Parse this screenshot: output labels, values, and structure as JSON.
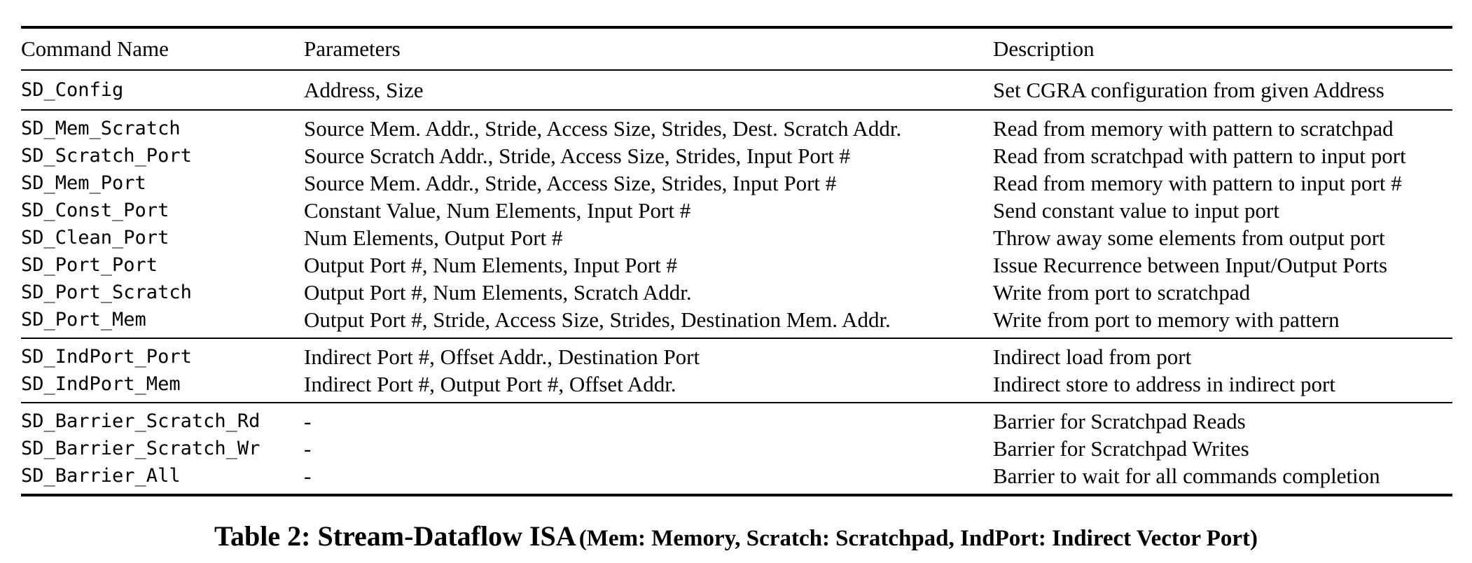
{
  "table": {
    "headers": {
      "command": "Command Name",
      "parameters": "Parameters",
      "description": "Description"
    },
    "groups": [
      {
        "rows": [
          {
            "command": "SD_Config",
            "parameters": "Address, Size",
            "description": "Set CGRA configuration from given Address"
          }
        ]
      },
      {
        "rows": [
          {
            "command": "SD_Mem_Scratch",
            "parameters": "Source Mem. Addr., Stride, Access Size, Strides, Dest. Scratch Addr.",
            "description": "Read from memory with pattern to scratchpad"
          },
          {
            "command": "SD_Scratch_Port",
            "parameters": "Source Scratch Addr., Stride, Access Size, Strides, Input Port #",
            "description": "Read from scratchpad with pattern to input port"
          },
          {
            "command": "SD_Mem_Port",
            "parameters": "Source Mem. Addr., Stride, Access Size, Strides, Input Port #",
            "description": "Read from memory with pattern to input port #"
          },
          {
            "command": "SD_Const_Port",
            "parameters": "Constant Value, Num Elements, Input Port #",
            "description": "Send constant value to input port"
          },
          {
            "command": "SD_Clean_Port",
            "parameters": "Num Elements, Output Port #",
            "description": "Throw away some elements from output port"
          },
          {
            "command": "SD_Port_Port",
            "parameters": "Output Port #, Num Elements, Input Port #",
            "description": "Issue Recurrence between Input/Output Ports"
          },
          {
            "command": "SD_Port_Scratch",
            "parameters": "Output Port #, Num Elements, Scratch Addr.",
            "description": "Write from port to scratchpad"
          },
          {
            "command": "SD_Port_Mem",
            "parameters": "Output Port #, Stride, Access Size, Strides, Destination Mem. Addr.",
            "description": "Write from port to memory with pattern"
          }
        ]
      },
      {
        "rows": [
          {
            "command": "SD_IndPort_Port",
            "parameters": "Indirect Port #, Offset Addr., Destination Port",
            "description": "Indirect load from port"
          },
          {
            "command": "SD_IndPort_Mem",
            "parameters": "Indirect Port #, Output Port #, Offset Addr.",
            "description": "Indirect store to address in indirect port"
          }
        ]
      },
      {
        "rows": [
          {
            "command": "SD_Barrier_Scratch_Rd",
            "parameters": "-",
            "description": "Barrier for Scratchpad Reads"
          },
          {
            "command": "SD_Barrier_Scratch_Wr",
            "parameters": "-",
            "description": "Barrier for Scratchpad Writes"
          },
          {
            "command": "SD_Barrier_All",
            "parameters": "-",
            "description": "Barrier to wait for all commands completion"
          }
        ]
      }
    ]
  },
  "caption": {
    "main": "Table 2: Stream-Dataflow ISA",
    "sub": "(Mem: Memory, Scratch: Scratchpad, IndPort: Indirect Vector Port)"
  }
}
